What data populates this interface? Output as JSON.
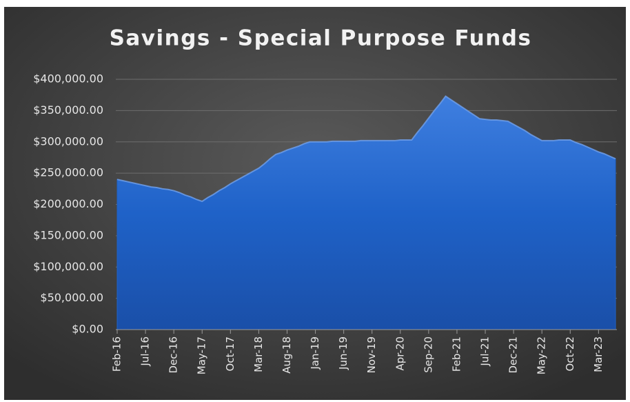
{
  "chart_data": {
    "type": "area",
    "title": "Savings - Special Purpose Funds",
    "categories": [
      "Feb-16",
      null,
      null,
      null,
      null,
      "Jul-16",
      null,
      null,
      null,
      null,
      "Dec-16",
      null,
      null,
      null,
      null,
      "May-17",
      null,
      null,
      null,
      null,
      "Oct-17",
      null,
      null,
      null,
      null,
      "Mar-18",
      null,
      null,
      null,
      null,
      "Aug-18",
      null,
      null,
      null,
      null,
      "Jan-19",
      null,
      null,
      null,
      null,
      "Jun-19",
      null,
      null,
      null,
      null,
      "Nov-19",
      null,
      null,
      null,
      null,
      "Apr-20",
      null,
      null,
      null,
      null,
      "Sep-20",
      null,
      null,
      null,
      null,
      "Feb-21",
      null,
      null,
      null,
      null,
      "Jul-21",
      null,
      null,
      null,
      null,
      "Dec-21",
      null,
      null,
      null,
      null,
      "May-22",
      null,
      null,
      null,
      null,
      "Oct-22",
      null,
      null,
      null,
      null,
      "Mar-23",
      null,
      null,
      null
    ],
    "values": [
      240000,
      238000,
      236000,
      234000,
      232000,
      230000,
      228000,
      227000,
      225000,
      224000,
      222000,
      219000,
      215000,
      212000,
      208000,
      205000,
      211000,
      216000,
      222000,
      227000,
      233000,
      238000,
      243000,
      248000,
      253000,
      258000,
      265000,
      273000,
      280000,
      283000,
      287000,
      290000,
      293000,
      297000,
      300000,
      300000,
      300000,
      300000,
      301000,
      301000,
      301000,
      301000,
      301000,
      302000,
      302000,
      302000,
      302000,
      302000,
      302000,
      302000,
      303000,
      303000,
      303000,
      315000,
      326000,
      338000,
      350000,
      361000,
      373000,
      367000,
      361000,
      355000,
      349000,
      343000,
      337000,
      336000,
      335000,
      335000,
      334000,
      333000,
      328000,
      323000,
      318000,
      312000,
      307000,
      302000,
      302000,
      302000,
      303000,
      303000,
      303000,
      299000,
      296000,
      292000,
      288000,
      284000,
      281000,
      277000,
      273000
    ],
    "color": "#1f62c8",
    "ylim": [
      0,
      400000
    ],
    "yticks": [
      {
        "value": 0,
        "label": "$0.00"
      },
      {
        "value": 50000,
        "label": "$50,000.00"
      },
      {
        "value": 100000,
        "label": "$100,000.00"
      },
      {
        "value": 150000,
        "label": "$150,000.00"
      },
      {
        "value": 200000,
        "label": "$200,000.00"
      },
      {
        "value": 250000,
        "label": "$250,000.00"
      },
      {
        "value": 300000,
        "label": "$300,000.00"
      },
      {
        "value": 350000,
        "label": "$350,000.00"
      },
      {
        "value": 400000,
        "label": "$400,000.00"
      }
    ],
    "grid": true
  }
}
